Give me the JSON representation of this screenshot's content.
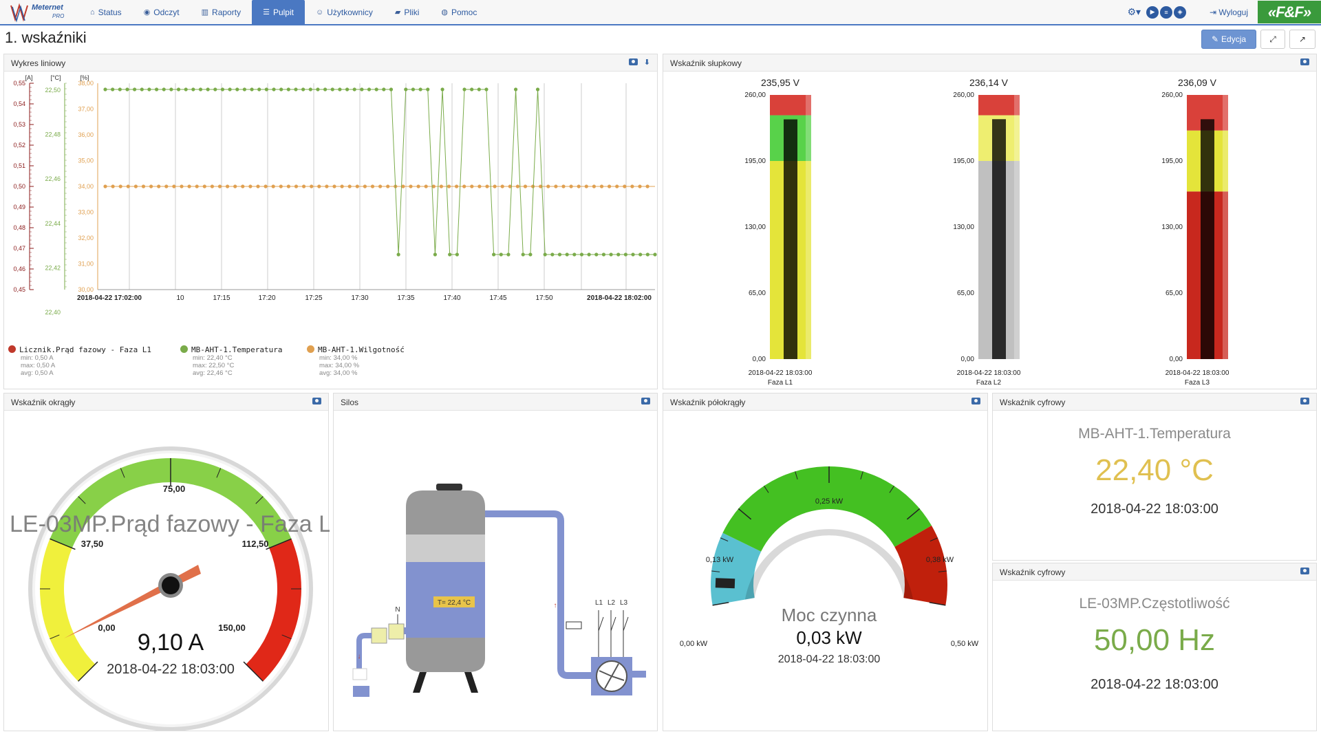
{
  "nav": {
    "logo_text": "Meternet",
    "logo_sub": "PRO",
    "items": [
      {
        "label": "Status",
        "icon": "home-icon"
      },
      {
        "label": "Odczyt",
        "icon": "eye-icon"
      },
      {
        "label": "Raporty",
        "icon": "bar-chart-icon"
      },
      {
        "label": "Pulpit",
        "icon": "list-icon"
      },
      {
        "label": "Użytkownicy",
        "icon": "user-icon"
      },
      {
        "label": "Pliki",
        "icon": "folder-icon"
      },
      {
        "label": "Pomoc",
        "icon": "help-icon"
      }
    ],
    "active": "Pulpit",
    "logout_label": "Wyloguj",
    "brand": "«F&F»"
  },
  "page": {
    "title": "1. wskaźniki",
    "edit_label": "Edycja"
  },
  "panels": {
    "line": {
      "title": "Wykres liniowy"
    },
    "bars": {
      "title": "Wskaźnik słupkowy"
    },
    "round": {
      "title": "Wskaźnik okrągły"
    },
    "silo": {
      "title": "Silos"
    },
    "semi": {
      "title": "Wskaźnik półokrągły"
    },
    "digital1": {
      "title": "Wskaźnik cyfrowy",
      "label": "MB-AHT-1.Temperatura",
      "value": "22,40 °C",
      "time": "2018-04-22 18:03:00",
      "color": "#e0c050"
    },
    "digital2": {
      "title": "Wskaźnik cyfrowy",
      "label": "LE-03MP.Częstotliwość",
      "value": "50,00 Hz",
      "time": "2018-04-22 18:03:00",
      "color": "#7aab4a"
    }
  },
  "chart_data": [
    {
      "type": "line",
      "axes_units": [
        "[A]",
        "[°C]",
        "[%]"
      ],
      "axis_A_ticks": [
        "0,55",
        "0,54",
        "0,53",
        "0,52",
        "0,51",
        "0,50",
        "0,49",
        "0,48",
        "0,47",
        "0,46",
        "0,45"
      ],
      "axis_C_ticks": [
        "22,50",
        "22,48",
        "22,46",
        "22,44",
        "22,42",
        "22,40"
      ],
      "axis_pct_ticks": [
        "38,00",
        "37,00",
        "36,00",
        "35,00",
        "34,00",
        "33,00",
        "32,00",
        "31,00",
        "30,00"
      ],
      "x_ticks": [
        "2018-04-22 17:02:00",
        "10",
        "17:15",
        "17:20",
        "17:25",
        "17:30",
        "17:35",
        "17:40",
        "17:45",
        "17:50",
        "2018-04-22 18:02:00"
      ],
      "series": [
        {
          "name": "Licznik.Prąd fazowy - Faza L1",
          "color": "#c0392b",
          "min": "0,50 A",
          "max": "0,50 A",
          "avg": "0,50 A"
        },
        {
          "name": "MB-AHT-1.Temperatura",
          "color": "#7aab4a",
          "min": "22,40 °C",
          "max": "22,50 °C",
          "avg": "22,46 °C",
          "values": [
            22.5,
            22.5,
            22.5,
            22.5,
            22.5,
            22.5,
            22.5,
            22.5,
            22.5,
            22.5,
            22.5,
            22.5,
            22.5,
            22.5,
            22.5,
            22.5,
            22.5,
            22.5,
            22.5,
            22.5,
            22.5,
            22.5,
            22.5,
            22.5,
            22.5,
            22.5,
            22.5,
            22.5,
            22.5,
            22.5,
            22.5,
            22.5,
            22.5,
            22.5,
            22.5,
            22.5,
            22.5,
            22.5,
            22.5,
            22.5,
            22.4,
            22.5,
            22.5,
            22.5,
            22.5,
            22.4,
            22.5,
            22.4,
            22.4,
            22.5,
            22.5,
            22.5,
            22.5,
            22.4,
            22.4,
            22.4,
            22.5,
            22.4,
            22.4,
            22.5,
            22.4,
            22.4,
            22.4,
            22.4,
            22.4,
            22.4,
            22.4,
            22.4,
            22.4,
            22.4,
            22.4,
            22.4,
            22.4,
            22.4,
            22.4,
            22.4
          ]
        },
        {
          "name": "MB-AHT-1.Wilgotność",
          "color": "#e0a050",
          "min": "34,00 %",
          "max": "34,00 %",
          "avg": "34,00 %",
          "values_const": 34.0
        }
      ]
    },
    {
      "type": "bar",
      "ticks": [
        "260,00",
        "195,00",
        "130,00",
        "65,00",
        "0,00"
      ],
      "ylim": [
        0,
        260
      ],
      "bars": [
        {
          "label": "Faza L1",
          "value_text": "235,95 V",
          "value": 235.95,
          "time": "2018-04-22 18:03:00",
          "bands": [
            "#e4e43a",
            "#58d24a",
            "#d9413a"
          ]
        },
        {
          "label": "Faza L2",
          "value_text": "236,14 V",
          "value": 236.14,
          "time": "2018-04-22 18:03:00",
          "bands": [
            "#c0c0c0",
            "#eeee70",
            "#d9413a"
          ]
        },
        {
          "label": "Faza L3",
          "value_text": "236,09 V",
          "value": 236.09,
          "time": "2018-04-22 18:03:00",
          "bands": [
            "#c8281e",
            "#e4e43a",
            "#d9413a"
          ]
        }
      ]
    }
  ],
  "round_gauge": {
    "value_text": "9,10 A",
    "value": 9.1,
    "title": "LE-03MP.Prąd fazowy - Faza L",
    "time": "2018-04-22 18:03:00",
    "ticks": [
      "0,00",
      "37,50",
      "75,00",
      "112,50",
      "150,00"
    ]
  },
  "silo": {
    "temp_label": "T= 22,4 °C",
    "n_label": "N",
    "phases": [
      "L1",
      "L2",
      "L3"
    ]
  },
  "semi_gauge": {
    "label": "Moc czynna",
    "value_text": "0,03 kW",
    "value": 0.03,
    "time": "2018-04-22 18:03:00",
    "ticks": [
      "0,00 kW",
      "0,13 kW",
      "0,25 kW",
      "0,38 kW",
      "0,50 kW"
    ]
  }
}
